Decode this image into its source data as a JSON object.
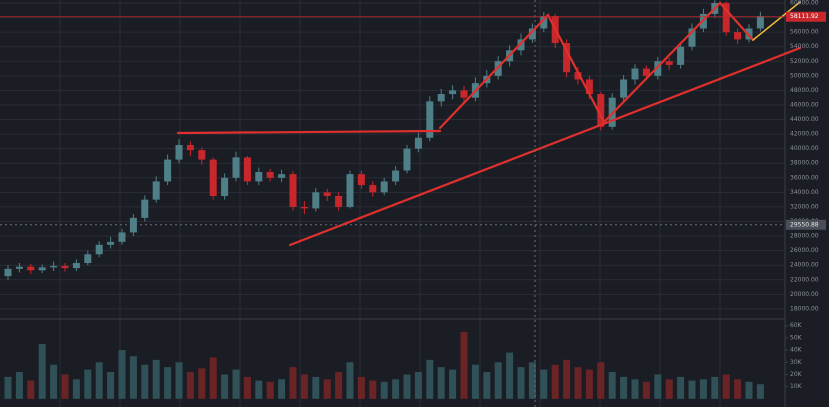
{
  "chart_data": {
    "type": "candlestick",
    "up_color": "#4f8088",
    "down_color": "#c8272b",
    "volume_up_color": "#2f5157",
    "volume_down_color": "#6b2426",
    "open": [
      22500,
      23500,
      23800,
      23300,
      23700,
      23900,
      23600,
      24300,
      25500,
      26800,
      27200,
      28500,
      30500,
      33000,
      35500,
      38500,
      40500,
      39800,
      38500,
      33500,
      36000,
      38800,
      35500,
      36800,
      36000,
      36500,
      32000,
      31800,
      34000,
      33500,
      32000,
      36500,
      35000,
      34000,
      35500,
      37000,
      40000,
      41500,
      46500,
      47500,
      48000,
      47000,
      49000,
      50000,
      52000,
      53500,
      55000,
      56500,
      58200,
      54500,
      50500,
      49500,
      47500,
      43000,
      47000,
      49500,
      51000,
      50000,
      52000,
      51500,
      54000,
      56500,
      58500,
      60000,
      56000,
      55000,
      56500
    ],
    "high": [
      24000,
      24300,
      24200,
      24100,
      24500,
      24300,
      24800,
      26000,
      27300,
      27900,
      29000,
      31000,
      33600,
      36200,
      39200,
      41300,
      41000,
      40200,
      38800,
      36600,
      39600,
      39000,
      37400,
      37200,
      37100,
      36900,
      32800,
      34600,
      34500,
      34000,
      37000,
      37000,
      35500,
      36000,
      37600,
      40500,
      42200,
      47200,
      48200,
      48700,
      48600,
      49800,
      50800,
      52700,
      54200,
      55800,
      57200,
      58800,
      58500,
      55000,
      51200,
      50000,
      47800,
      47600,
      50100,
      51600,
      51400,
      52600,
      52500,
      54600,
      57200,
      59200,
      60400,
      60200,
      56500,
      57100,
      58800
    ],
    "low": [
      22000,
      23000,
      22800,
      22900,
      23200,
      23100,
      23200,
      24000,
      25100,
      26300,
      26800,
      28000,
      30000,
      32600,
      35000,
      38000,
      39000,
      37800,
      33000,
      33000,
      35500,
      35000,
      35000,
      35500,
      35400,
      31500,
      31000,
      31400,
      32800,
      31500,
      31800,
      34500,
      33400,
      33600,
      35000,
      36600,
      39500,
      41000,
      45800,
      46800,
      46300,
      46500,
      48400,
      49500,
      51300,
      52800,
      54500,
      56000,
      53800,
      49800,
      48800,
      46800,
      42500,
      42600,
      46500,
      48800,
      49400,
      49500,
      50800,
      51000,
      53500,
      56000,
      58000,
      55500,
      54400,
      54600,
      56100
    ],
    "close": [
      23500,
      23800,
      23300,
      23700,
      23900,
      23600,
      24300,
      25500,
      26800,
      27200,
      28500,
      30500,
      33000,
      35500,
      38500,
      40500,
      39800,
      38500,
      33500,
      36000,
      38800,
      35500,
      36800,
      36000,
      36500,
      32000,
      31800,
      34000,
      33500,
      32000,
      36500,
      35000,
      34000,
      35500,
      37000,
      40000,
      41500,
      46500,
      47500,
      48000,
      47000,
      49000,
      50000,
      52000,
      53500,
      55000,
      56500,
      58200,
      54500,
      50500,
      49500,
      47500,
      43000,
      47000,
      49500,
      51000,
      50000,
      52000,
      51500,
      54000,
      56500,
      58500,
      60000,
      56000,
      55000,
      56500,
      58200
    ],
    "volume": [
      18000,
      22000,
      15000,
      45000,
      28000,
      20000,
      16000,
      24000,
      30000,
      22000,
      40000,
      35000,
      28000,
      32000,
      26000,
      30000,
      22000,
      25000,
      34000,
      20000,
      24000,
      18000,
      15000,
      14000,
      16000,
      26000,
      20000,
      18000,
      16000,
      22000,
      30000,
      18000,
      15000,
      14000,
      16000,
      20000,
      22000,
      32000,
      26000,
      24000,
      55000,
      28000,
      22000,
      30000,
      38000,
      26000,
      30000,
      24000,
      28000,
      32000,
      26000,
      24000,
      30000,
      22000,
      18000,
      16000,
      14000,
      20000,
      16000,
      18000,
      15000,
      16000,
      18000,
      20000,
      16000,
      14000,
      12000
    ],
    "ylim": [
      16750,
      60410
    ],
    "yticks": [
      {
        "value": 60000,
        "label": "60000.00"
      },
      {
        "value": 58000,
        "label": "58000.00"
      },
      {
        "value": 56000,
        "label": "56000.00"
      },
      {
        "value": 54000,
        "label": "54000.00"
      },
      {
        "value": 52000,
        "label": "52000.00"
      },
      {
        "value": 50000,
        "label": "50000.00"
      },
      {
        "value": 48000,
        "label": "48000.00"
      },
      {
        "value": 46000,
        "label": "46000.00"
      },
      {
        "value": 44000,
        "label": "44000.00"
      },
      {
        "value": 42000,
        "label": "42000.00"
      },
      {
        "value": 40000,
        "label": "40000.00"
      },
      {
        "value": 38000,
        "label": "38000.00"
      },
      {
        "value": 36000,
        "label": "36000.00"
      },
      {
        "value": 34000,
        "label": "34000.00"
      },
      {
        "value": 32000,
        "label": "32000.00"
      },
      {
        "value": 30000,
        "label": "30000.00"
      },
      {
        "value": 28000,
        "label": "28000.00"
      },
      {
        "value": 26000,
        "label": "26000.00"
      },
      {
        "value": 24000,
        "label": "24000.00"
      },
      {
        "value": 22000,
        "label": "22000.00"
      },
      {
        "value": 20000,
        "label": "20000.00"
      },
      {
        "value": 18000,
        "label": "18000.00"
      }
    ],
    "volume_lim": [
      -6700,
      64700
    ],
    "volume_ticks": [
      {
        "value": 60000,
        "label": "60K"
      },
      {
        "value": 50000,
        "label": "50K"
      },
      {
        "value": 40000,
        "label": "40K"
      },
      {
        "value": 30000,
        "label": "30K"
      },
      {
        "value": 20000,
        "label": "20K"
      },
      {
        "value": 10000,
        "label": "10K"
      }
    ],
    "last_price": {
      "value": 58111.92,
      "label": "58111.92"
    },
    "crosshair_price": {
      "value": 29550.88,
      "label": "29550.88"
    },
    "grid": true
  }
}
